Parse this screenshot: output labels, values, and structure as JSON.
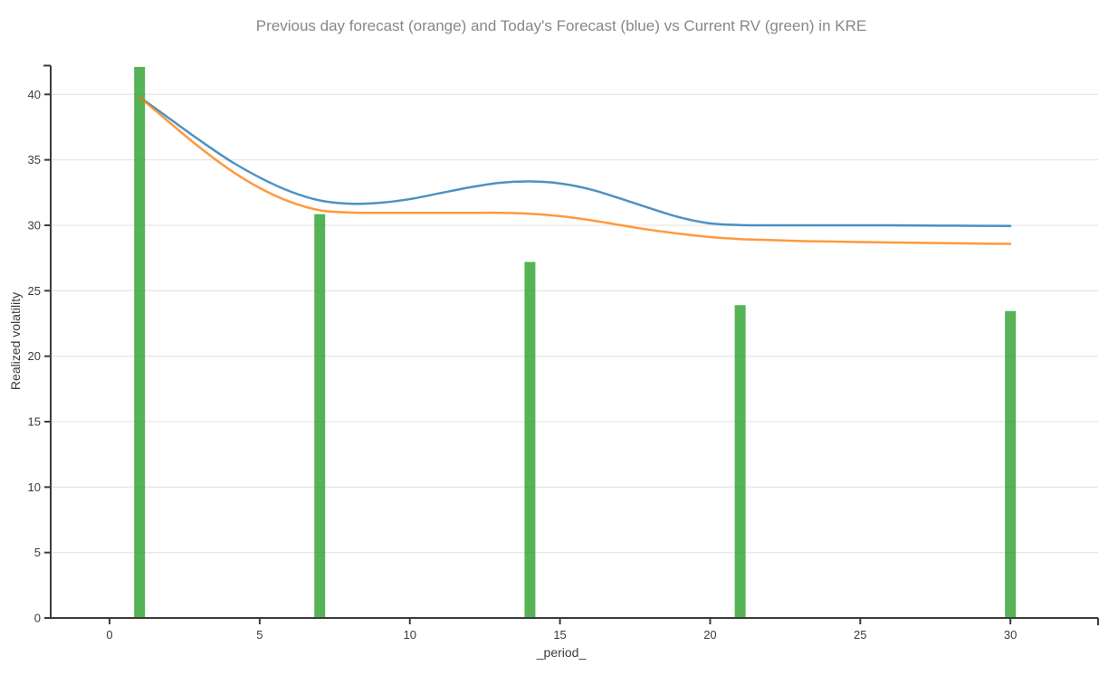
{
  "chart_data": {
    "type": "mixed",
    "title": "Previous day forecast (orange) and Today's Forecast (blue) vs Current RV (green) in KRE",
    "xlabel": "_period_",
    "ylabel": "Realized volatility",
    "x_ticks": [
      0,
      5,
      10,
      15,
      20,
      25,
      30
    ],
    "y_ticks": [
      0,
      5,
      10,
      15,
      20,
      25,
      30,
      35,
      40
    ],
    "xlim": [
      -1.96,
      32.92
    ],
    "ylim": [
      0,
      42.2
    ],
    "grid": "horizontal-only",
    "legend": "none (series identified by colors in title)",
    "colors": {
      "previous_day_forecast": "#ff7f0e",
      "todays_forecast": "#1f77b4",
      "current_rv": "#2ca02c",
      "title_text": "#878787",
      "axis_text": "#3b3b3b",
      "axis_line": "#3c3c3c",
      "gridline": "#e7e7e7"
    },
    "series": [
      {
        "name": "Current RV",
        "type": "bar",
        "color": "#2ca02c",
        "opacity": 0.8,
        "x": [
          1,
          7,
          14,
          21,
          30
        ],
        "values": [
          42.1,
          30.85,
          27.2,
          23.9,
          23.45
        ]
      },
      {
        "name": "Today's Forecast",
        "type": "line",
        "color": "#1f77b4",
        "opacity": 0.8,
        "x": [
          1,
          2,
          3,
          4,
          5,
          6,
          7,
          8,
          9,
          10,
          11,
          12,
          13,
          14,
          15,
          16,
          17,
          18,
          19,
          20,
          21,
          22,
          23,
          24,
          25,
          26,
          27,
          28,
          29,
          30
        ],
        "values": [
          39.8,
          38.15,
          36.5,
          34.95,
          33.65,
          32.6,
          31.9,
          31.65,
          31.72,
          32.0,
          32.45,
          32.9,
          33.25,
          33.35,
          33.2,
          32.75,
          32.05,
          31.3,
          30.6,
          30.15,
          30.02,
          30.0,
          30.0,
          30.0,
          30.0,
          30.0,
          29.98,
          29.97,
          29.96,
          29.95
        ]
      },
      {
        "name": "Previous day forecast",
        "type": "line",
        "color": "#ff7f0e",
        "opacity": 0.8,
        "x": [
          1,
          2,
          3,
          4,
          5,
          6,
          7,
          8,
          9,
          10,
          11,
          12,
          13,
          14,
          15,
          16,
          17,
          18,
          19,
          20,
          21,
          22,
          23,
          24,
          25,
          26,
          27,
          28,
          29,
          30
        ],
        "values": [
          39.8,
          37.85,
          35.95,
          34.25,
          32.85,
          31.8,
          31.15,
          30.98,
          30.95,
          30.95,
          30.95,
          30.95,
          30.95,
          30.88,
          30.7,
          30.4,
          30.02,
          29.65,
          29.35,
          29.1,
          28.95,
          28.87,
          28.8,
          28.76,
          28.72,
          28.69,
          28.66,
          28.63,
          28.6,
          28.58
        ]
      }
    ]
  }
}
